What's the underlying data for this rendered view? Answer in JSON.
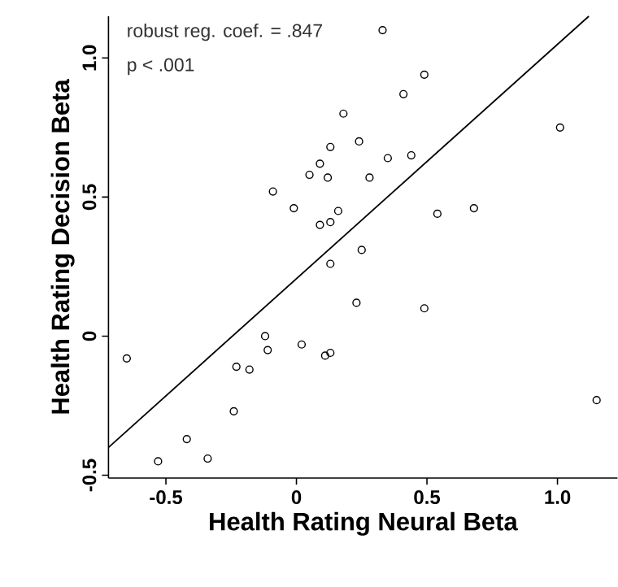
{
  "chart_data": {
    "type": "scatter",
    "xlabel": "Health Rating Neural Beta",
    "ylabel": "Health Rating Decision Beta",
    "annotations": [
      "robust reg. coef. = .847",
      "p < .001"
    ],
    "xlim": [
      -0.72,
      1.23
    ],
    "ylim": [
      -0.51,
      1.15
    ],
    "xticks": [
      {
        "value": -0.5,
        "label": "-0.5"
      },
      {
        "value": 0,
        "label": "0"
      },
      {
        "value": 0.5,
        "label": "0.5"
      },
      {
        "value": 1,
        "label": "1.0"
      }
    ],
    "yticks": [
      {
        "value": -0.5,
        "label": "-0.5"
      },
      {
        "value": 0,
        "label": "0"
      },
      {
        "value": 0.5,
        "label": "0.5"
      },
      {
        "value": 1,
        "label": "1.0"
      }
    ],
    "series": [
      {
        "marker": "circle",
        "color": "#000000",
        "x": [
          0.33,
          0.49,
          0.41,
          0.18,
          1.01,
          0.24,
          0.13,
          0.09,
          0.05,
          0.12,
          0.35,
          0.44,
          0.28,
          -0.09,
          -0.01,
          0.54,
          0.68,
          0.09,
          0.13,
          0.16,
          0.25,
          0.13,
          0.23,
          0.49,
          -0.65,
          -0.12,
          -0.11,
          0.02,
          0.11,
          0.13,
          -0.23,
          -0.18,
          -0.24,
          -0.42,
          -0.53,
          -0.34,
          1.15
        ],
        "values": [
          1.1,
          0.94,
          0.87,
          0.8,
          0.75,
          0.7,
          0.68,
          0.62,
          0.58,
          0.57,
          0.64,
          0.65,
          0.57,
          0.52,
          0.46,
          0.44,
          0.46,
          0.4,
          0.41,
          0.45,
          0.31,
          0.26,
          0.12,
          0.1,
          -0.08,
          0.0,
          -0.05,
          -0.03,
          -0.07,
          -0.06,
          -0.11,
          -0.12,
          -0.27,
          -0.37,
          -0.45,
          -0.44,
          -0.23
        ]
      },
      {
        "type": "line",
        "marker": "none",
        "color": "#000000",
        "x": [
          -0.72,
          1.12
        ],
        "values": [
          -0.4,
          1.15
        ]
      }
    ]
  }
}
